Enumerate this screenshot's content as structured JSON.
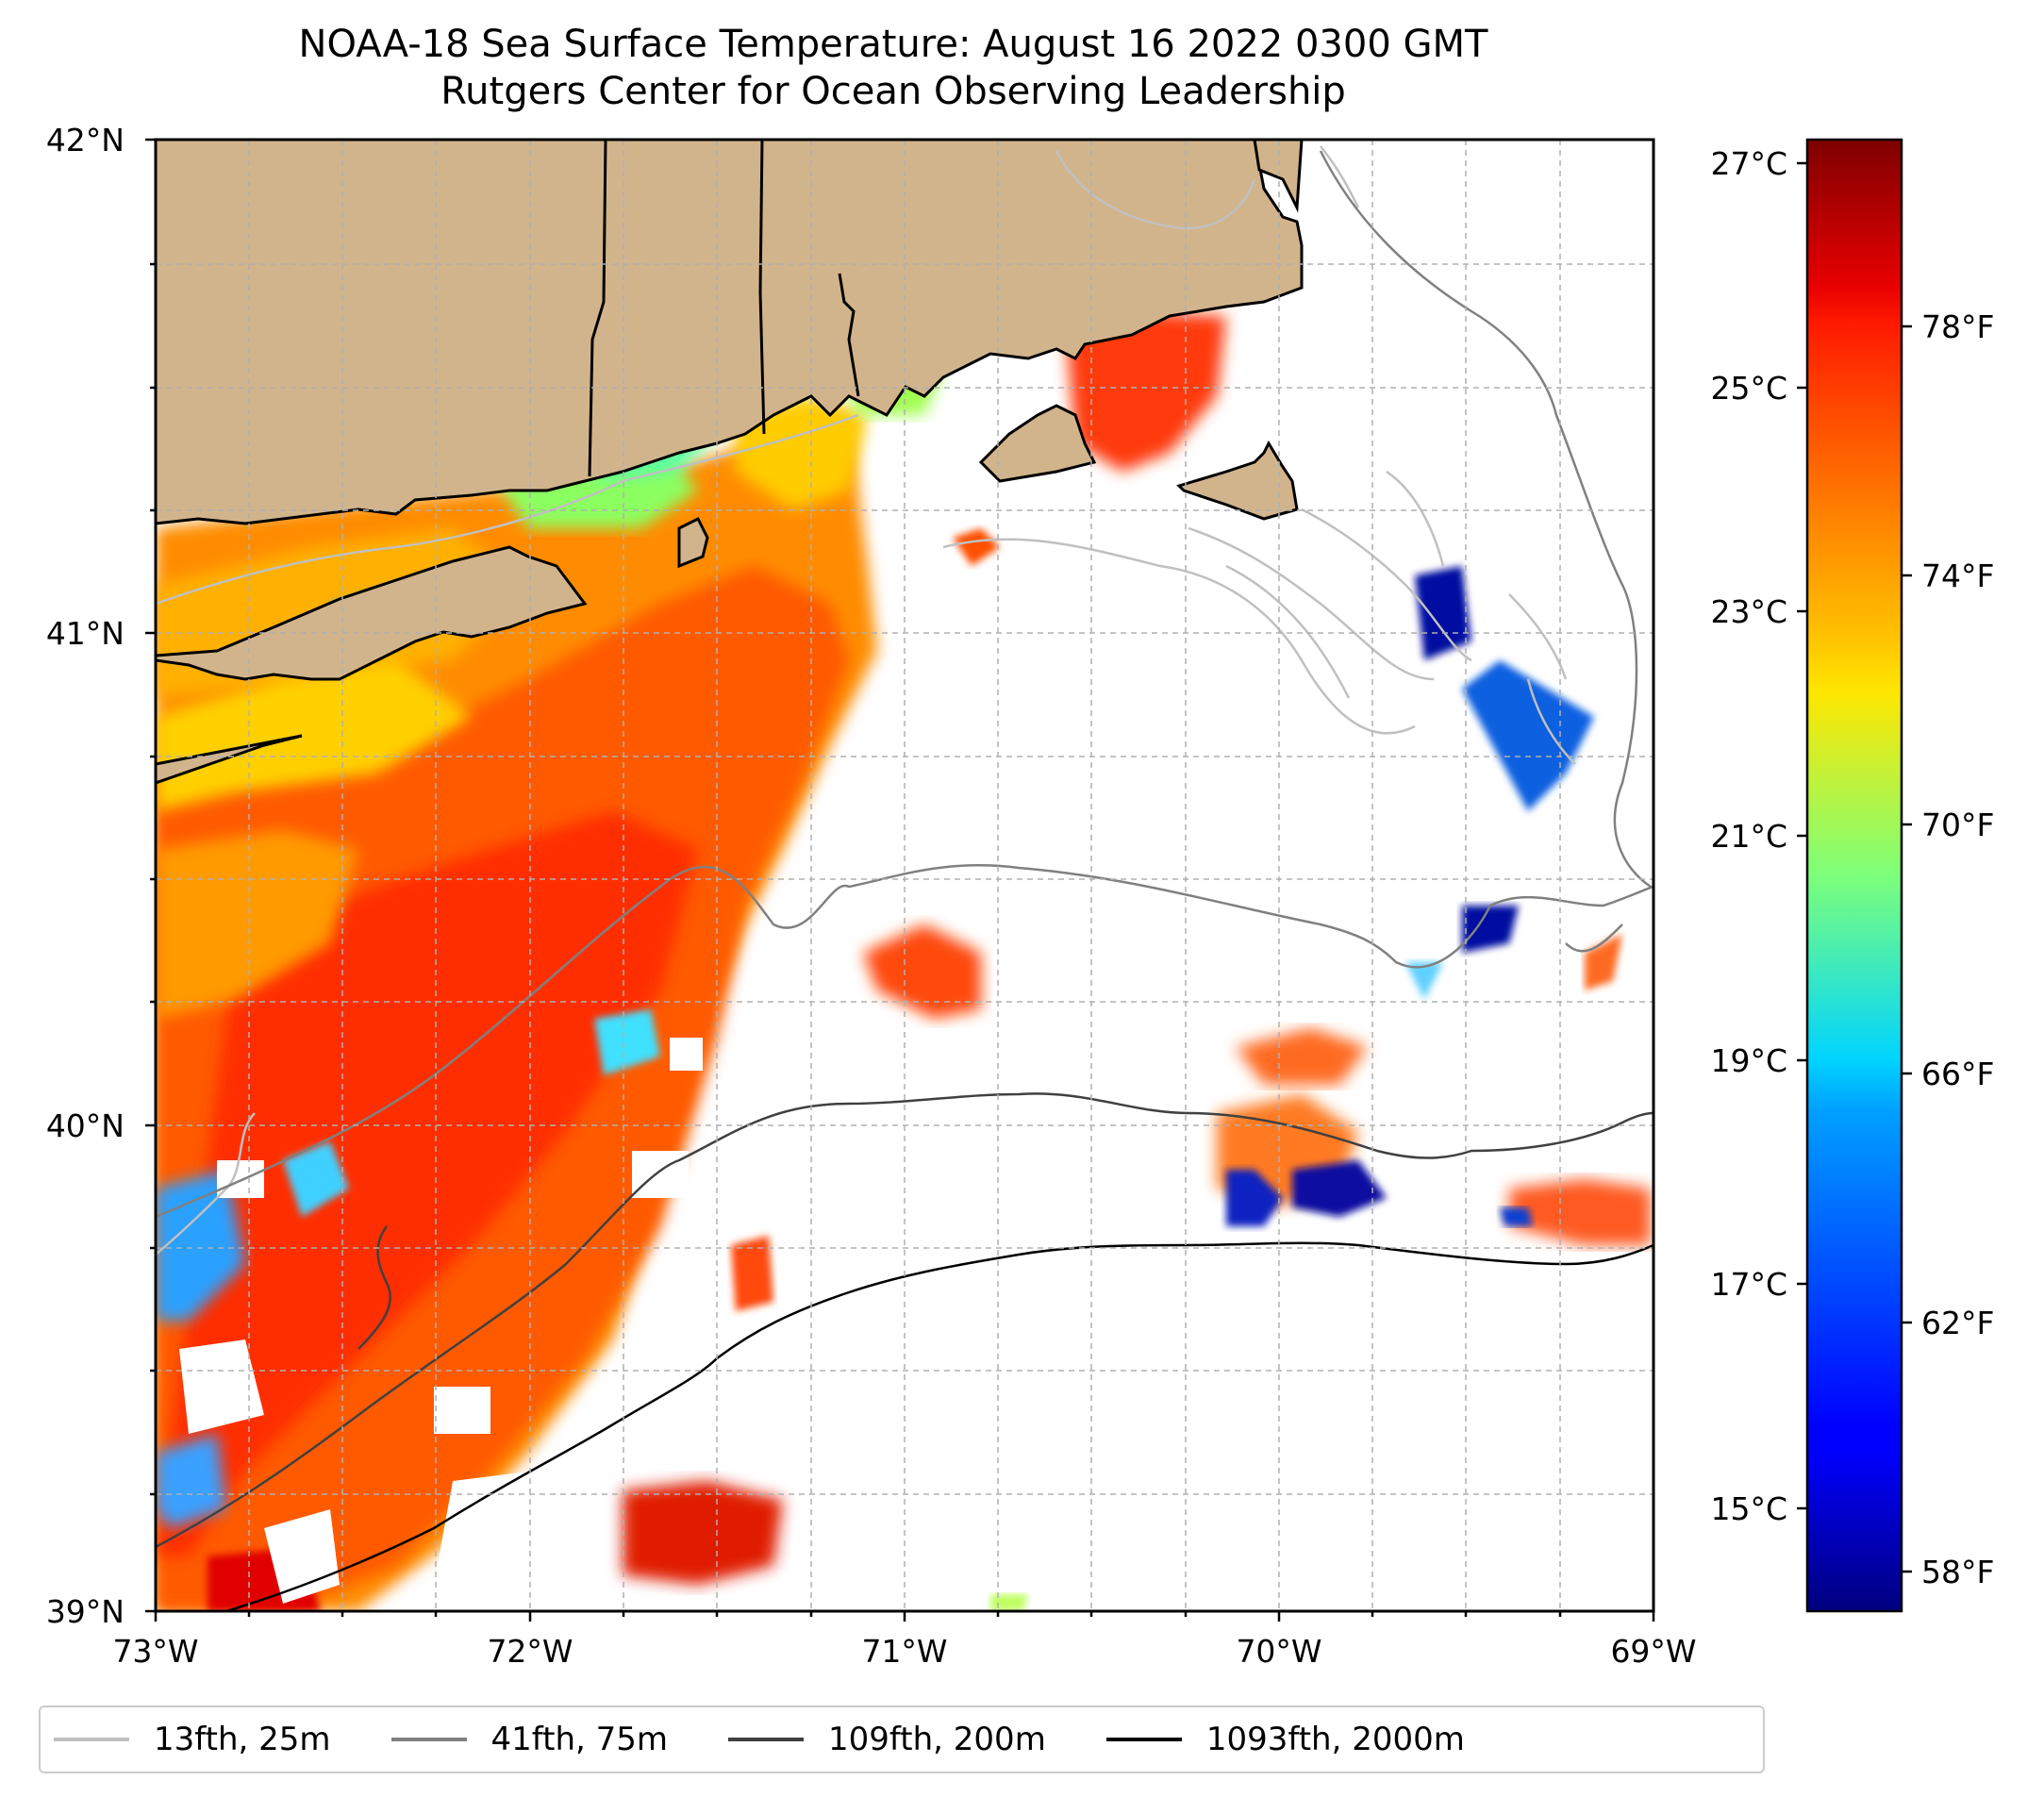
{
  "title": {
    "line1": "NOAA-18 Sea Surface Temperature: August 16 2022 0300 GMT",
    "line2": "Rutgers Center for Ocean Observing Leadership"
  },
  "map": {
    "lat_labels": [
      "42°N",
      "41°N",
      "40°N",
      "39°N"
    ],
    "lon_labels": [
      "73°W",
      "72°W",
      "71°W",
      "70°W",
      "69°W"
    ],
    "land_color": "#d2b48c",
    "extent": {
      "lon_min": -73,
      "lon_max": -69,
      "lat_min": 39,
      "lat_max": 42
    }
  },
  "colorbar": {
    "celsius_labels": [
      "27°C",
      "25°C",
      "23°C",
      "21°C",
      "19°C",
      "17°C",
      "15°C"
    ],
    "fahrenheit_labels": [
      "78°F",
      "74°F",
      "70°F",
      "66°F",
      "62°F",
      "58°F"
    ],
    "colormap": "jet",
    "range_f": [
      57.2,
      81.4
    ]
  },
  "legend": {
    "items": [
      {
        "label": "13fth, 25m",
        "color": "#c0c0c0"
      },
      {
        "label": "41fth, 75m",
        "color": "#808080"
      },
      {
        "label": "109fth, 200m",
        "color": "#404040"
      },
      {
        "label": "1093fth, 2000m",
        "color": "#000000"
      }
    ]
  }
}
